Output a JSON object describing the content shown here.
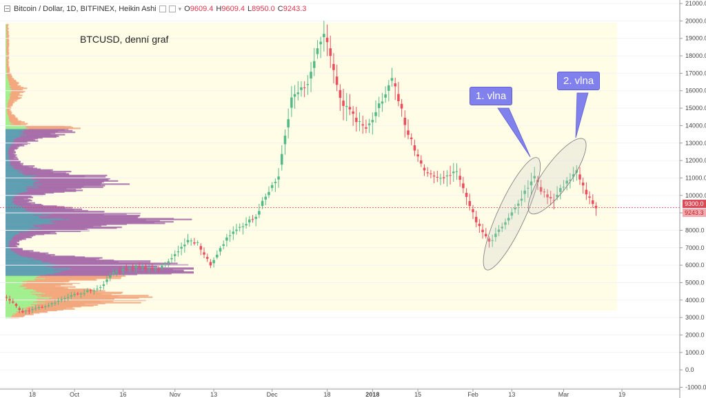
{
  "header": {
    "symbol": "Bitcoin / Dollar, 1D, BITFINEX, Heikin Ashi",
    "open_label": "O",
    "open_value": "9609.4",
    "high_label": "H",
    "high_value": "9609.4",
    "low_label": "L",
    "low_value": "8950.0",
    "close_label": "C",
    "close_value": "9243.3"
  },
  "annotations": {
    "title_note": "BTCUSD, denní graf",
    "wave1": "1. vlna",
    "wave2": "2. vlna"
  },
  "price_tags": {
    "upper": "9300.0",
    "lower": "9243.3"
  },
  "colors": {
    "up": "#53b987",
    "down": "#eb4d5c",
    "volume_profile_up": "#a46aa8",
    "volume_profile_alt": "#f2a57a",
    "volume_profile_green": "#9df08c",
    "volume_profile_value_area": "#5b9bb0",
    "range_background": "#fffde6",
    "callout": "#8181ee"
  },
  "chart_data": {
    "type": "candlestick",
    "chart_style": "Heikin Ashi",
    "y_ticks": [
      -1000,
      0,
      1000,
      2000,
      3000,
      4000,
      5000,
      6000,
      7000,
      8000,
      9000,
      10000,
      11000,
      12000,
      13000,
      14000,
      15000,
      16000,
      17000,
      18000,
      19000,
      20000,
      21000
    ],
    "y_tick_labels": [
      "-1000.0",
      "0.0",
      "1000.0",
      "2000.0",
      "3000.0",
      "4000.0",
      "5000.0",
      "6000.0",
      "7000.0",
      "8000.0",
      "9000.0",
      "10000.0",
      "11000.0",
      "12000.0",
      "13000.0",
      "14000.0",
      "15000.0",
      "16000.0",
      "17000.0",
      "18000.0",
      "19000.0",
      "20000.0",
      "21000.0"
    ],
    "ylim": [
      -1100,
      21200
    ],
    "x_ticks": [
      {
        "label": "18",
        "date": "2017-09-18"
      },
      {
        "label": "Oct",
        "date": "2017-10-01"
      },
      {
        "label": "16",
        "date": "2017-10-16"
      },
      {
        "label": "Nov",
        "date": "2017-11-01"
      },
      {
        "label": "13",
        "date": "2017-11-13"
      },
      {
        "label": "Dec",
        "date": "2017-12-01"
      },
      {
        "label": "18",
        "date": "2017-12-18"
      },
      {
        "label": "2018",
        "date": "2018-01-01"
      },
      {
        "label": "15",
        "date": "2018-01-15"
      },
      {
        "label": "Feb",
        "date": "2018-02-01"
      },
      {
        "label": "13",
        "date": "2018-02-13"
      },
      {
        "label": "Mar",
        "date": "2018-03-01"
      },
      {
        "label": "19",
        "date": "2018-03-19"
      }
    ],
    "x_range": [
      "2017-09-08",
      "2018-03-26"
    ],
    "last_price_line": 9300,
    "price_path": [
      [
        "2017-09-10",
        4150
      ],
      [
        "2017-09-15",
        3300
      ],
      [
        "2017-09-22",
        3650
      ],
      [
        "2017-10-01",
        4300
      ],
      [
        "2017-10-09",
        4700
      ],
      [
        "2017-10-13",
        5600
      ],
      [
        "2017-10-20",
        5900
      ],
      [
        "2017-10-27",
        5800
      ],
      [
        "2017-11-01",
        6600
      ],
      [
        "2017-11-05",
        7350
      ],
      [
        "2017-11-08",
        7300
      ],
      [
        "2017-11-12",
        6000
      ],
      [
        "2017-11-17",
        7600
      ],
      [
        "2017-11-26",
        8800
      ],
      [
        "2017-11-29",
        10000
      ],
      [
        "2017-12-03",
        11200
      ],
      [
        "2017-12-07",
        15500
      ],
      [
        "2017-12-12",
        16500
      ],
      [
        "2017-12-17",
        19500
      ],
      [
        "2017-12-22",
        15500
      ],
      [
        "2017-12-26",
        14500
      ],
      [
        "2017-12-30",
        13800
      ],
      [
        "2018-01-05",
        15800
      ],
      [
        "2018-01-07",
        16900
      ],
      [
        "2018-01-12",
        13500
      ],
      [
        "2018-01-17",
        11500
      ],
      [
        "2018-01-22",
        11000
      ],
      [
        "2018-01-27",
        11300
      ],
      [
        "2018-02-02",
        8500
      ],
      [
        "2018-02-06",
        7300
      ],
      [
        "2018-02-10",
        8200
      ],
      [
        "2018-02-15",
        9600
      ],
      [
        "2018-02-20",
        11000
      ],
      [
        "2018-02-22",
        10300
      ],
      [
        "2018-02-26",
        9700
      ],
      [
        "2018-03-01",
        10600
      ],
      [
        "2018-03-05",
        11400
      ],
      [
        "2018-03-08",
        10100
      ],
      [
        "2018-03-11",
        9243.3
      ]
    ],
    "volume_profile": {
      "price_low": 3000,
      "price_high": 19800,
      "value_area_low": 5400,
      "value_area_high": 13800,
      "peaks": [
        {
          "price": 5800,
          "width": 1.0
        },
        {
          "price": 8600,
          "width": 0.83
        },
        {
          "price": 10800,
          "width": 0.58
        },
        {
          "price": 4100,
          "width": 0.68
        },
        {
          "price": 13800,
          "width": 0.32
        },
        {
          "price": 16000,
          "width": 0.25
        }
      ]
    },
    "annotations": [
      {
        "label": "1. vlna",
        "from_date": "2018-02-06",
        "from_price": 6100,
        "to_date": "2018-02-20",
        "to_price": 11800
      },
      {
        "label": "2. vlna",
        "from_date": "2018-02-20",
        "from_price": 9300,
        "to_date": "2018-03-06",
        "to_price": 12900
      }
    ]
  }
}
